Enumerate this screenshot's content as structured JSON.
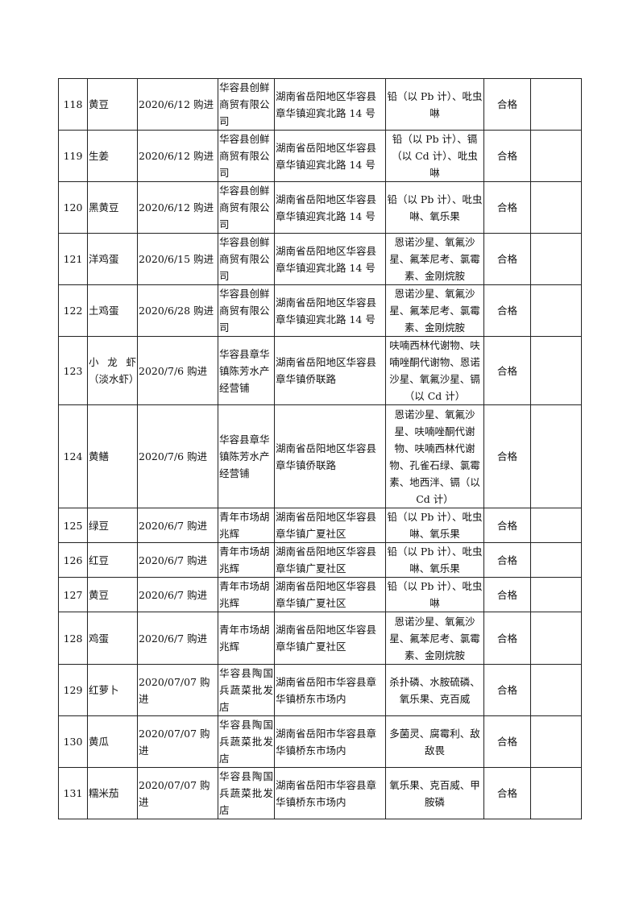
{
  "rows": [
    {
      "no": "118",
      "name": "黄豆",
      "date": "2020/6/12 购进",
      "supplier": "华容县创鲜商贸有限公司",
      "address": "湖南省岳阳地区华容县章华镇迎宾北路 14 号",
      "items": "铅（以 Pb 计）、吡虫啉",
      "result": "合格",
      "note": ""
    },
    {
      "no": "119",
      "name": "生姜",
      "date": "2020/6/12 购进",
      "supplier": "华容县创鲜商贸有限公司",
      "address": "湖南省岳阳地区华容县章华镇迎宾北路 14 号",
      "items": "铅（以 Pb 计）、镉（以 Cd 计）、吡虫啉",
      "result": "合格",
      "note": ""
    },
    {
      "no": "120",
      "name": "黑黄豆",
      "date": "2020/6/12 购进",
      "supplier": "华容县创鲜商贸有限公司",
      "address": "湖南省岳阳地区华容县章华镇迎宾北路 14 号",
      "items": "铅（以 Pb 计）、吡虫啉、氧乐果",
      "result": "合格",
      "note": ""
    },
    {
      "no": "121",
      "name": "洋鸡蛋",
      "date": "2020/6/15 购进",
      "supplier": "华容县创鲜商贸有限公司",
      "address": "湖南省岳阳地区华容县章华镇迎宾北路 14 号",
      "items": "恩诺沙星、氧氟沙星、氟苯尼考、氯霉素、金刚烷胺",
      "result": "合格",
      "note": ""
    },
    {
      "no": "122",
      "name": "土鸡蛋",
      "date": "2020/6/28 购进",
      "supplier": "华容县创鲜商贸有限公司",
      "address": "湖南省岳阳地区华容县章华镇迎宾北路 14 号",
      "items": "恩诺沙星、氧氟沙星、氟苯尼考、氯霉素、金刚烷胺",
      "result": "合格",
      "note": ""
    },
    {
      "no": "123",
      "name": "小龙虾（淡水虾）",
      "date": "2020/7/6 购进",
      "supplier": "华容县章华镇陈芳水产经营铺",
      "address": "湖南省岳阳地区华容县章华镇侨联路",
      "items": "呋喃西林代谢物、呋喃唑酮代谢物、恩诺沙星、氧氟沙星、镉（以 Cd 计）",
      "result": "合格",
      "note": ""
    },
    {
      "no": "124",
      "name": "黄鳝",
      "date": "2020/7/6 购进",
      "supplier": "华容县章华镇陈芳水产经营铺",
      "address": "湖南省岳阳地区华容县章华镇侨联路",
      "items": "恩诺沙星、氧氟沙星、呋喃唑酮代谢物、呋喃西林代谢物、孔雀石绿、氯霉素、地西泮、镉（以 Cd 计）",
      "result": "合格",
      "note": ""
    },
    {
      "no": "125",
      "name": "绿豆",
      "date": "2020/6/7 购进",
      "supplier": "青年市场胡兆辉",
      "address": "湖南省岳阳地区华容县章华镇广夏社区",
      "items": "铅（以 Pb 计）、吡虫啉、氧乐果",
      "result": "合格",
      "note": ""
    },
    {
      "no": "126",
      "name": "红豆",
      "date": "2020/6/7 购进",
      "supplier": "青年市场胡兆辉",
      "address": "湖南省岳阳地区华容县章华镇广夏社区",
      "items": "铅（以 Pb 计）、吡虫啉、氧乐果",
      "result": "合格",
      "note": ""
    },
    {
      "no": "127",
      "name": "黄豆",
      "date": "2020/6/7 购进",
      "supplier": "青年市场胡兆辉",
      "address": "湖南省岳阳地区华容县章华镇广夏社区",
      "items": "铅（以 Pb 计）、吡虫啉",
      "result": "合格",
      "note": ""
    },
    {
      "no": "128",
      "name": "鸡蛋",
      "date": "2020/6/7 购进",
      "supplier": "青年市场胡兆辉",
      "address": "湖南省岳阳地区华容县章华镇广夏社区",
      "items": "恩诺沙星、氧氟沙星、氟苯尼考、氯霉素、金刚烷胺",
      "result": "合格",
      "note": ""
    },
    {
      "no": "129",
      "name": "红萝卜",
      "date": "2020/07/07 购进",
      "supplier": "华容县陶国兵蔬菜批发店",
      "address": "湖南省岳阳市华容县章华镇桥东市场内",
      "items": "杀扑磷、水胺硫磷、氧乐果、克百威",
      "result": "合格",
      "note": ""
    },
    {
      "no": "130",
      "name": "黄瓜",
      "date": "2020/07/07 购进",
      "supplier": "华容县陶国兵蔬菜批发店",
      "address": "湖南省岳阳市华容县章华镇桥东市场内",
      "items": "多菌灵、腐霉利、敌敌畏",
      "result": "合格",
      "note": ""
    },
    {
      "no": "131",
      "name": "糯米茄",
      "date": "2020/07/07 购进",
      "supplier": "华容县陶国兵蔬菜批发店",
      "address": "湖南省岳阳市华容县章华镇桥东市场内",
      "items": "氧乐果、克百威、甲胺磷",
      "result": "合格",
      "note": ""
    }
  ]
}
